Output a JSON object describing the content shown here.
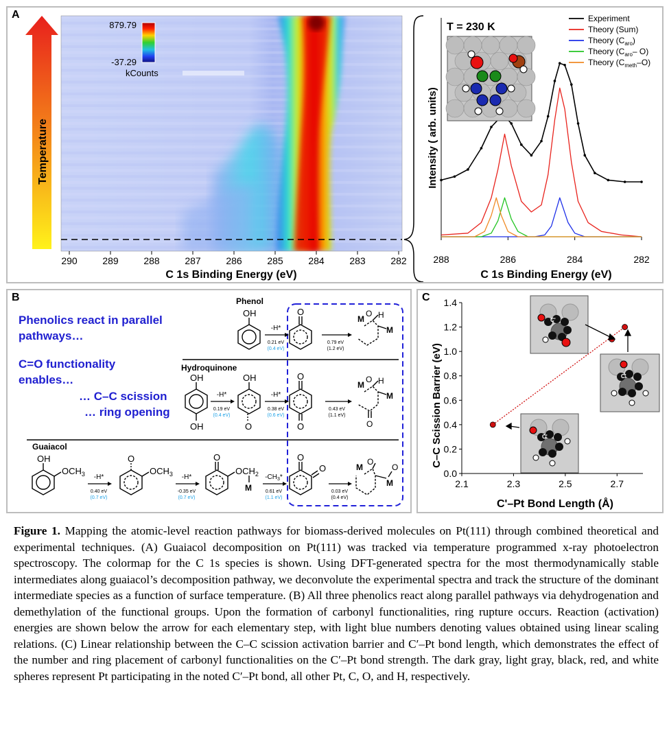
{
  "panelA": {
    "label": "A",
    "temp_label": "Temperature",
    "colorbar": {
      "max": "879.79",
      "min": "-37.29",
      "unit": "kCounts"
    },
    "xaxis_title": "C 1s Binding Energy (eV)",
    "xticks": [
      "290",
      "289",
      "288",
      "287",
      "286",
      "285",
      "284",
      "283",
      "282"
    ],
    "spectrum": {
      "temp_title": "T = 230 K",
      "ylabel": "Intensity ( arb. units)",
      "xlabel": "C 1s Binding Energy (eV)",
      "xticks": [
        "288",
        "286",
        "284",
        "282"
      ],
      "legend": [
        {
          "label": "Experiment",
          "color": "#000000"
        },
        {
          "label": "Theory (Sum)",
          "color": "#e8221c"
        },
        {
          "label": "Theory (C",
          "sub": "aro",
          "after": ")",
          "color": "#1c2ee8"
        },
        {
          "label": "Theory (C",
          "sub": "aro",
          "after": "– O)",
          "color": "#22c422"
        },
        {
          "label": "Theory (C",
          "sub": "meth",
          "after": "–O)",
          "color": "#f08a24"
        }
      ]
    }
  },
  "panelB": {
    "label": "B",
    "head1": "Phenolics react in parallel",
    "head2": "pathways…",
    "head3": "C=O functionality",
    "head4": "enables…",
    "head5": "… C–C scission",
    "head6": "… ring opening",
    "phenol": "Phenol",
    "hydroquinone": "Hydroquinone",
    "guaiacol": "Guaiacol",
    "oh": "OH",
    "och3": "OCH",
    "och2": "OCH",
    "o": "O",
    "m": "M",
    "h": "H",
    "steps": {
      "ph1": {
        "label": "-H*",
        "e": "0.21 eV",
        "s": "(0.4 eV)"
      },
      "ph2": {
        "e": "0.79 eV",
        "s": "(1.2 eV)"
      },
      "hq1": {
        "label": "-H*",
        "e": "0.19 eV",
        "s": "(0.4 eV)"
      },
      "hq2": {
        "label": "-H*",
        "e": "0.38 eV",
        "s": "(0.6 eV)"
      },
      "hq3": {
        "e": "0.43 eV",
        "s": "(1.1 eV)"
      },
      "gu1": {
        "label": "-H*",
        "e": "0.40 eV",
        "s": "(0.7 eV)"
      },
      "gu2": {
        "label": "-H*",
        "e": "-0.35 eV",
        "s": "(0.7 eV)"
      },
      "gu3": {
        "label": "-CH",
        "e": "0.61 eV",
        "s": "(1.1 eV)"
      },
      "gu4": {
        "e": "0.03 eV",
        "s": "(0.4 eV)"
      }
    }
  },
  "panelC": {
    "label": "C",
    "ylabel": "C–C Scission Barrier (eV)",
    "xlabel": "C'–Pt Bond Length (Å)",
    "xticks": [
      "2.1",
      "2.3",
      "2.5",
      "2.7"
    ],
    "yticks": [
      "0.0",
      "0.2",
      "0.4",
      "0.6",
      "0.8",
      "1.0",
      "1.2",
      "1.4"
    ]
  },
  "chart_data": [
    {
      "type": "heatmap",
      "xlabel": "C 1s Binding Energy (eV)",
      "ylabel": "Temperature",
      "xlim": [
        290,
        282
      ],
      "colorbar_range": [
        -37.29,
        879.79
      ],
      "colorbar_unit": "kCounts"
    },
    {
      "type": "line",
      "title": "T = 230 K",
      "xlabel": "C 1s Binding Energy (eV)",
      "ylabel": "Intensity ( arb. units)",
      "xlim": [
        288,
        282
      ],
      "series": [
        {
          "name": "Experiment",
          "color": "#000000",
          "x": [
            288,
            287.6,
            287.2,
            286.8,
            286.5,
            286.3,
            286.1,
            285.9,
            285.6,
            285.3,
            285.0,
            284.8,
            284.6,
            284.45,
            284.3,
            284.1,
            283.9,
            283.7,
            283.4,
            283.0,
            282.5,
            282.0
          ],
          "y": [
            0.32,
            0.34,
            0.38,
            0.5,
            0.62,
            0.66,
            0.68,
            0.64,
            0.52,
            0.46,
            0.54,
            0.68,
            0.88,
            0.98,
            0.97,
            0.86,
            0.64,
            0.46,
            0.36,
            0.32,
            0.31,
            0.31
          ]
        },
        {
          "name": "Theory (Sum)",
          "color": "#e8221c",
          "x": [
            288,
            287.2,
            286.8,
            286.5,
            286.3,
            286.1,
            285.9,
            285.6,
            285.3,
            285.0,
            284.8,
            284.6,
            284.45,
            284.3,
            284.1,
            283.9,
            283.6,
            283.2,
            282.6,
            282.0
          ],
          "y": [
            0.01,
            0.02,
            0.08,
            0.22,
            0.38,
            0.58,
            0.4,
            0.2,
            0.14,
            0.18,
            0.35,
            0.66,
            0.84,
            0.72,
            0.42,
            0.2,
            0.08,
            0.03,
            0.01,
            0.0
          ]
        },
        {
          "name": "Theory (Caro)",
          "color": "#1c2ee8",
          "x": [
            288,
            285.2,
            284.9,
            284.7,
            284.45,
            284.2,
            284.0,
            283.7,
            282.0
          ],
          "y": [
            0,
            0,
            0.01,
            0.06,
            0.22,
            0.08,
            0.02,
            0,
            0
          ]
        },
        {
          "name": "Theory (Caro– O)",
          "color": "#22c422",
          "x": [
            288,
            286.8,
            286.5,
            286.3,
            286.1,
            285.9,
            285.7,
            285.4,
            282.0
          ],
          "y": [
            0,
            0,
            0.02,
            0.09,
            0.22,
            0.1,
            0.03,
            0,
            0
          ]
        },
        {
          "name": "Theory (Cmeth–O)",
          "color": "#f08a24",
          "x": [
            288,
            287.0,
            286.7,
            286.5,
            286.35,
            286.2,
            286.0,
            285.7,
            282.0
          ],
          "y": [
            0,
            0,
            0.03,
            0.12,
            0.22,
            0.12,
            0.03,
            0,
            0
          ]
        }
      ]
    },
    {
      "type": "scatter",
      "xlabel": "C'–Pt Bond Length (Å)",
      "ylabel": "C–C Scission Barrier (eV)",
      "xlim": [
        2.1,
        2.8
      ],
      "ylim": [
        0.0,
        1.4
      ],
      "x": [
        2.22,
        2.68,
        2.73
      ],
      "y": [
        0.4,
        1.1,
        1.2
      ]
    }
  ],
  "caption": {
    "fig": "Figure 1.",
    "text": " Mapping the atomic-level reaction pathways for biomass-derived molecules on Pt(111) through combined theoretical and experimental techniques. (A) Guaiacol decomposition on Pt(111) was tracked via temperature programmed x-ray photoelectron spectroscopy. The colormap for the C 1s species is shown. Using DFT-generated spectra for the most thermodynamically stable intermediates along guaiacol’s decomposition pathway, we deconvolute the experimental spectra and track the structure of the dominant intermediate species as a function of surface temperature. (B) All three phenolics react along parallel pathways via dehydrogenation and demethylation of the functional groups. Upon the formation of carbonyl functionalities, ring rupture occurs. Reaction (activation) energies are shown below the arrow for each elementary step, with light blue numbers denoting values obtained using linear scaling relations. (C) Linear relationship between the C–C scission activation barrier and C′–Pt bond length, which demonstrates the effect of the number and ring placement of carbonyl functionalities on the C′–Pt bond strength. The dark gray, light gray, black, red, and white spheres represent Pt participating in the noted C′–Pt bond, all other Pt, C, O, and H, respectively."
  }
}
